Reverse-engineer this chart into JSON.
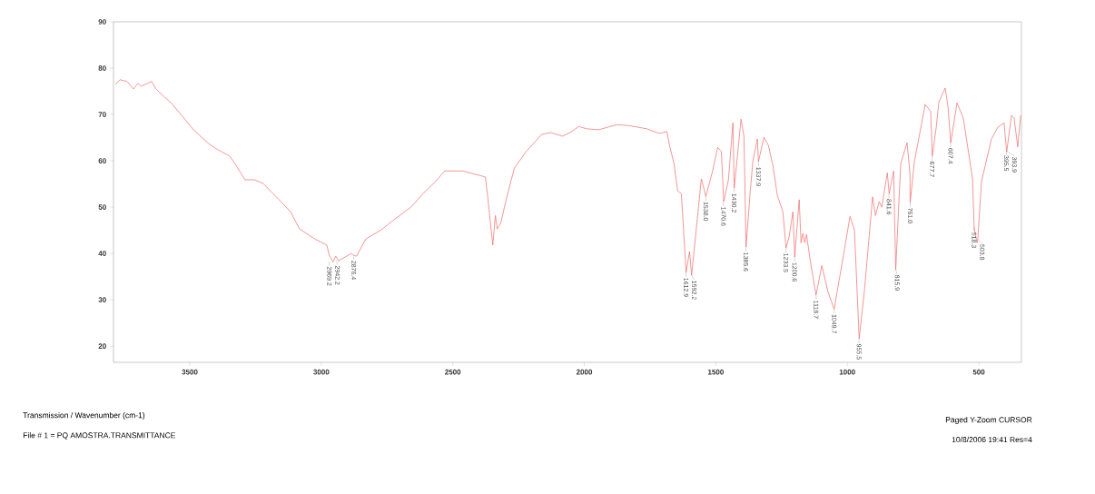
{
  "chart_data": {
    "type": "line",
    "color": "#ee6a6a",
    "x": [
      3783,
      3765,
      3738,
      3714,
      3697,
      3686,
      3645,
      3628,
      3610,
      3566,
      3531,
      3486,
      3428,
      3403,
      3348,
      3324,
      3290,
      3255,
      3221,
      3176,
      3117,
      3083,
      3024,
      2979,
      2969,
      2955,
      2945,
      2934,
      2886,
      2876,
      2866,
      2831,
      2772,
      2728,
      2659,
      2610,
      2566,
      2531,
      2497,
      2462,
      2376,
      2366,
      2348,
      2338,
      2331,
      2317,
      2297,
      2266,
      2221,
      2162,
      2128,
      2083,
      2048,
      2021,
      1990,
      1945,
      1876,
      1831,
      1762,
      1714,
      1686,
      1676,
      1659,
      1645,
      1631,
      1613,
      1600,
      1592,
      1555,
      1545,
      1538,
      1514,
      1493,
      1479,
      1470,
      1452,
      1435,
      1430,
      1404,
      1393,
      1385,
      1369,
      1359,
      1342,
      1338,
      1317,
      1300,
      1283,
      1266,
      1245,
      1233,
      1221,
      1207,
      1200,
      1183,
      1176,
      1169,
      1162,
      1155,
      1141,
      1119,
      1097,
      1073,
      1050,
      1038,
      1014,
      990,
      973,
      955,
      935,
      904,
      893,
      879,
      869,
      848,
      841,
      824,
      816,
      797,
      773,
      762,
      761,
      745,
      704,
      683,
      677,
      662,
      652,
      628,
      617,
      607,
      583,
      559,
      524,
      518,
      507,
      504,
      490,
      452,
      428,
      404,
      395,
      394,
      376,
      366,
      352,
      341
    ],
    "values": [
      76.5,
      77.5,
      77.1,
      75.5,
      76.7,
      76.1,
      77.1,
      75.5,
      74.5,
      72.2,
      69.8,
      66.7,
      63.7,
      62.7,
      61.0,
      59.0,
      55.9,
      55.9,
      55.1,
      52.5,
      49.0,
      45.3,
      43.1,
      41.8,
      39.5,
      38.2,
      39.4,
      38.4,
      40.0,
      39.6,
      39.4,
      43.1,
      45.1,
      47.1,
      50.0,
      53.1,
      55.5,
      57.8,
      57.8,
      57.8,
      56.5,
      51.6,
      41.8,
      48.2,
      45.3,
      46.7,
      51.6,
      58.4,
      62.0,
      65.7,
      66.1,
      65.3,
      66.3,
      67.4,
      66.9,
      66.7,
      67.8,
      67.6,
      66.9,
      65.9,
      66.3,
      63.3,
      59.4,
      53.5,
      52.9,
      35.9,
      40.4,
      35.3,
      56.1,
      53.9,
      52.3,
      57.4,
      62.9,
      62.0,
      51.2,
      55.9,
      68.2,
      54.1,
      69.0,
      65.3,
      41.4,
      53.5,
      60.0,
      64.7,
      59.8,
      65.1,
      63.3,
      59.0,
      52.5,
      49.0,
      41.2,
      43.7,
      49.0,
      39.2,
      51.6,
      42.3,
      44.3,
      42.3,
      44.1,
      38.4,
      31.0,
      37.4,
      31.6,
      28.0,
      32.0,
      39.8,
      48.0,
      45.1,
      21.6,
      32.0,
      52.2,
      48.2,
      51.2,
      50.0,
      57.4,
      52.9,
      57.8,
      36.5,
      59.4,
      63.9,
      57.4,
      51.0,
      59.8,
      72.2,
      70.6,
      61.0,
      67.2,
      72.7,
      75.7,
      71.6,
      63.9,
      72.5,
      69.2,
      56.1,
      45.7,
      42.3,
      43.1,
      55.5,
      64.7,
      67.2,
      68.2,
      62.3,
      62.0,
      69.8,
      69.2,
      63.0,
      69.8
    ],
    "xlim": [
      3790,
      338
    ],
    "ylim": [
      16.5,
      90
    ],
    "xticks": [
      3500,
      3000,
      2500,
      2000,
      1500,
      1000,
      500
    ],
    "yticks": [
      20,
      30,
      40,
      50,
      60,
      70,
      80,
      90
    ],
    "marker": "none",
    "line_style": "solid",
    "annotations": [
      {
        "text": "2969.2",
        "x": 2969.2,
        "y": 38.3
      },
      {
        "text": "2942.2",
        "x": 2942.2,
        "y": 38.5
      },
      {
        "text": "2876.4",
        "x": 2876.4,
        "y": 39.6
      },
      {
        "text": "1612.9",
        "x": 1612.9,
        "y": 35.9
      },
      {
        "text": "1592.2",
        "x": 1592.2,
        "y": 35.3
      },
      {
        "text": "1538.0",
        "x": 1538.0,
        "y": 52.3
      },
      {
        "text": "1470.6",
        "x": 1470.6,
        "y": 51.2
      },
      {
        "text": "1430.2",
        "x": 1430.2,
        "y": 54.1
      },
      {
        "text": "1385.6",
        "x": 1385.6,
        "y": 41.4
      },
      {
        "text": "1337.9",
        "x": 1337.9,
        "y": 59.8
      },
      {
        "text": "1233.5",
        "x": 1233.5,
        "y": 41.2
      },
      {
        "text": "1200.6",
        "x": 1200.6,
        "y": 39.2
      },
      {
        "text": "1118.7",
        "x": 1118.7,
        "y": 31.0
      },
      {
        "text": "1049.7",
        "x": 1049.7,
        "y": 28.0
      },
      {
        "text": "955.5",
        "x": 955.5,
        "y": 21.6
      },
      {
        "text": "841.6",
        "x": 841.6,
        "y": 52.9
      },
      {
        "text": "815.9",
        "x": 815.9,
        "y": 36.5
      },
      {
        "text": "761.0",
        "x": 761.0,
        "y": 51.0
      },
      {
        "text": "677.7",
        "x": 677.7,
        "y": 61.0
      },
      {
        "text": "607.4",
        "x": 607.4,
        "y": 63.9
      },
      {
        "text": "518.3",
        "x": 518.3,
        "y": 45.7
      },
      {
        "text": "503.8",
        "x": 503.8,
        "y": 43.1
      },
      {
        "text": "395.5",
        "x": 395.5,
        "y": 62.3
      },
      {
        "text": "393.9",
        "x": 393.9,
        "y": 62.0
      },
      "Transmission / Wavenumber (cm-1)",
      "File # 1 = PQ AMOSTRA.TRANSMITTANCE",
      "Paged  Y-Zoom CURSOR",
      "10/8/2006  19:41  Res=4"
    ]
  }
}
